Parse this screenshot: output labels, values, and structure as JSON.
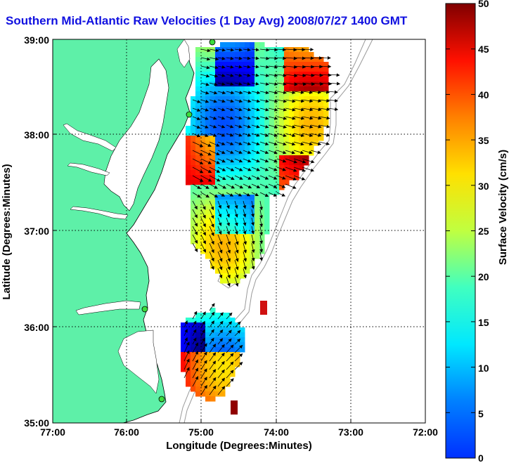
{
  "title": "Southern Mid-Atlantic Raw Velocities (1 Day Avg) 2008/07/27 1400 GMT",
  "x_label": "Longitude (Degrees:Minutes)",
  "y_label": "Latitude (Degrees:Minutes)",
  "x_ticks": [
    "77:00",
    "76:00",
    "75:00",
    "74:00",
    "73:00",
    "72:00"
  ],
  "y_ticks": [
    "39:00",
    "38:00",
    "37:00",
    "36:00",
    "35:00"
  ],
  "colorbar": {
    "label": "Surface Velocity (cm/s)",
    "range": [
      0,
      50
    ],
    "ticks": [
      "0",
      "5",
      "10",
      "15",
      "20",
      "25",
      "30",
      "35",
      "40",
      "45",
      "50"
    ]
  },
  "colors": {
    "land": "#5ef0a8",
    "title": "#1010e0",
    "station": "#3ddc3d"
  }
}
